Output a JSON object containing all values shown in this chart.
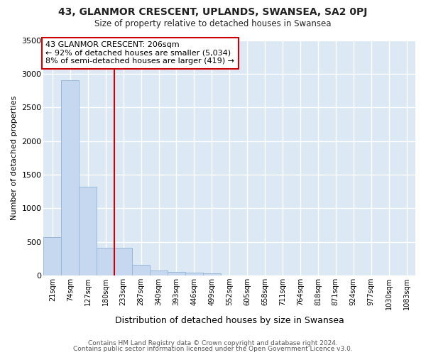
{
  "title1": "43, GLANMOR CRESCENT, UPLANDS, SWANSEA, SA2 0PJ",
  "title2": "Size of property relative to detached houses in Swansea",
  "xlabel": "Distribution of detached houses by size in Swansea",
  "ylabel": "Number of detached properties",
  "categories": [
    "21sqm",
    "74sqm",
    "127sqm",
    "180sqm",
    "233sqm",
    "287sqm",
    "340sqm",
    "393sqm",
    "446sqm",
    "499sqm",
    "552sqm",
    "605sqm",
    "658sqm",
    "711sqm",
    "764sqm",
    "818sqm",
    "871sqm",
    "924sqm",
    "977sqm",
    "1030sqm",
    "1083sqm"
  ],
  "values": [
    575,
    2900,
    1320,
    415,
    415,
    160,
    75,
    50,
    45,
    35,
    0,
    0,
    0,
    0,
    0,
    0,
    0,
    0,
    0,
    0,
    0
  ],
  "bar_color": "#c5d8ef",
  "bar_edge_color": "#9ab8d8",
  "bg_color": "#dce9f5",
  "grid_color": "#ffffff",
  "annotation_line1": "43 GLANMOR CRESCENT: 206sqm",
  "annotation_line2": "← 92% of detached houses are smaller (5,034)",
  "annotation_line3": "8% of semi-detached houses are larger (419) →",
  "annotation_box_color": "#ffffff",
  "annotation_box_edge": "#cc0000",
  "ylim": [
    0,
    3500
  ],
  "yticks": [
    0,
    500,
    1000,
    1500,
    2000,
    2500,
    3000,
    3500
  ],
  "footer1": "Contains HM Land Registry data © Crown copyright and database right 2024.",
  "footer2": "Contains public sector information licensed under the Open Government Licence v3.0.",
  "fig_bg": "#ffffff"
}
